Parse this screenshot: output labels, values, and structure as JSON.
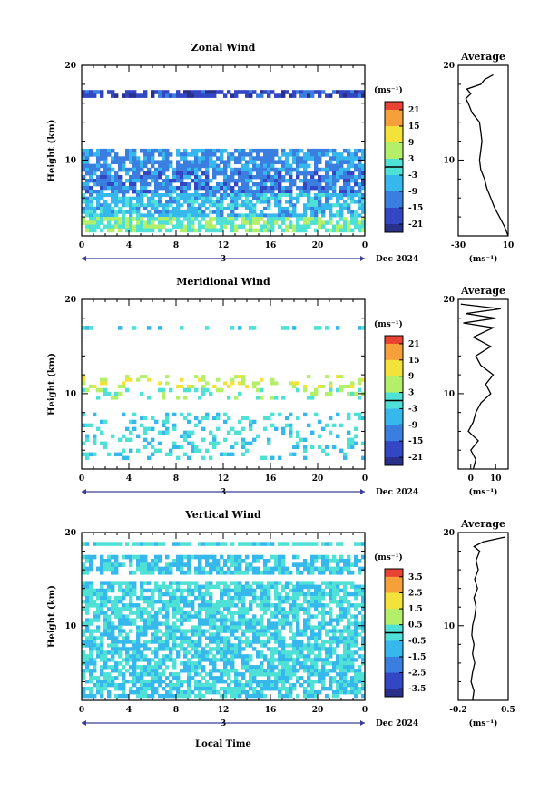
{
  "page": {
    "date_label": "Dec 2024",
    "day_label": "3",
    "local_time_label": "Local Time"
  },
  "chart_data": [
    {
      "type": "heatmap",
      "title": "Zonal Wind",
      "ylabel": "Height (km)",
      "xlabel": "Local Time",
      "xlim": [
        0,
        24
      ],
      "ylim": [
        2,
        20
      ],
      "x_ticks": [
        "0",
        "4",
        "8",
        "12",
        "16",
        "20",
        "0"
      ],
      "y_ticks": [
        "10",
        "20"
      ],
      "colorbar": {
        "unit": "(ms⁻¹)",
        "range": [
          -24,
          24
        ],
        "ticks": [
          "21",
          "15",
          "9",
          "3",
          "-3",
          "-9",
          "-15",
          "-21"
        ]
      },
      "average_profile": {
        "title": "Average",
        "xlabel": "(ms⁻¹)",
        "xlim": [
          -30,
          10
        ],
        "x_ticks": [
          "-30",
          "10"
        ],
        "y_ticks": [
          "10",
          "20"
        ],
        "heights": [
          2,
          3,
          4,
          5,
          6,
          7,
          8,
          9,
          10,
          11,
          12,
          13,
          14,
          15,
          16,
          16.5,
          17,
          17.5,
          18,
          18.5,
          19
        ],
        "values": [
          10,
          7,
          3,
          -1,
          -4,
          -7,
          -9,
          -12,
          -13,
          -12,
          -11,
          -12,
          -13,
          -19,
          -22,
          -24,
          -20,
          -23,
          -12,
          -9,
          -2
        ]
      },
      "bands": [
        {
          "y": [
            16.6,
            17.4
          ],
          "value": -18
        },
        {
          "y": [
            8.8,
            11.2
          ],
          "value": -10
        },
        {
          "y": [
            6.5,
            8.8
          ],
          "value": -12
        },
        {
          "y": [
            4.0,
            6.5
          ],
          "value": -6
        },
        {
          "y": [
            2.4,
            4.0
          ],
          "value": 2
        }
      ]
    },
    {
      "type": "heatmap",
      "title": "Meridional Wind",
      "ylabel": "Height (km)",
      "xlabel": "Local Time",
      "xlim": [
        0,
        24
      ],
      "ylim": [
        2,
        20
      ],
      "x_ticks": [
        "0",
        "4",
        "8",
        "12",
        "16",
        "20",
        "0"
      ],
      "y_ticks": [
        "10",
        "20"
      ],
      "colorbar": {
        "unit": "(ms⁻¹)",
        "range": [
          -24,
          24
        ],
        "ticks": [
          "21",
          "15",
          "9",
          "3",
          "-3",
          "-9",
          "-15",
          "-21"
        ]
      },
      "average_profile": {
        "title": "Average",
        "xlabel": "(ms⁻¹)",
        "xlim": [
          -5,
          15
        ],
        "x_ticks": [
          "0",
          "10"
        ],
        "y_ticks": [
          "10",
          "20"
        ],
        "heights": [
          2,
          3,
          4,
          5,
          6,
          7,
          8,
          9,
          10,
          11,
          12,
          13,
          14,
          15,
          16,
          17,
          17.5,
          18,
          18.5,
          19,
          19.5
        ],
        "values": [
          1,
          2,
          0,
          3,
          -1,
          1,
          2,
          4,
          8,
          6,
          9,
          4,
          2,
          8,
          1,
          9,
          -3,
          10,
          -2,
          12,
          -4
        ]
      },
      "bands": [
        {
          "y": [
            10.6,
            12.0
          ],
          "value": 8
        },
        {
          "y": [
            9.4,
            10.6
          ],
          "value": 3
        },
        {
          "y": [
            16.8,
            17.2
          ],
          "value": -3
        },
        {
          "y": [
            3.0,
            8.0
          ],
          "value": -2
        }
      ]
    },
    {
      "type": "heatmap",
      "title": "Vertical Wind",
      "ylabel": "Height (km)",
      "xlabel": "Local Time",
      "xlim": [
        0,
        24
      ],
      "ylim": [
        2,
        20
      ],
      "x_ticks": [
        "0",
        "4",
        "8",
        "12",
        "16",
        "20",
        "0"
      ],
      "y_ticks": [
        "10",
        "20"
      ],
      "colorbar": {
        "unit": "(ms⁻¹)",
        "range": [
          -4,
          4
        ],
        "ticks": [
          "3.5",
          "2.5",
          "1.5",
          "0.5",
          "-0.5",
          "-1.5",
          "-2.5",
          "-3.5"
        ]
      },
      "average_profile": {
        "title": "Average",
        "xlabel": "(ms⁻¹)",
        "xlim": [
          -0.2,
          0.5
        ],
        "x_ticks": [
          "-0.2",
          "0.5"
        ],
        "y_ticks": [
          "10",
          "20"
        ],
        "heights": [
          2,
          3,
          4,
          5,
          6,
          7,
          8,
          9,
          10,
          11,
          12,
          13,
          14,
          15,
          16,
          17,
          18,
          18.5,
          19,
          19.5
        ],
        "values": [
          0.0,
          0.02,
          -0.02,
          0.0,
          0.03,
          0.0,
          0.02,
          -0.01,
          0.0,
          0.03,
          0.05,
          0.02,
          0.07,
          0.03,
          0.08,
          0.05,
          0.1,
          0.02,
          0.15,
          0.45
        ]
      },
      "bands": [
        {
          "y": [
            18.6,
            19.0
          ],
          "value": -0.3
        },
        {
          "y": [
            15.5,
            17.6
          ],
          "value": -0.6
        },
        {
          "y": [
            11.2,
            14.8
          ],
          "value": -0.4
        },
        {
          "y": [
            2.3,
            11.2
          ],
          "value": -0.5
        }
      ]
    }
  ]
}
